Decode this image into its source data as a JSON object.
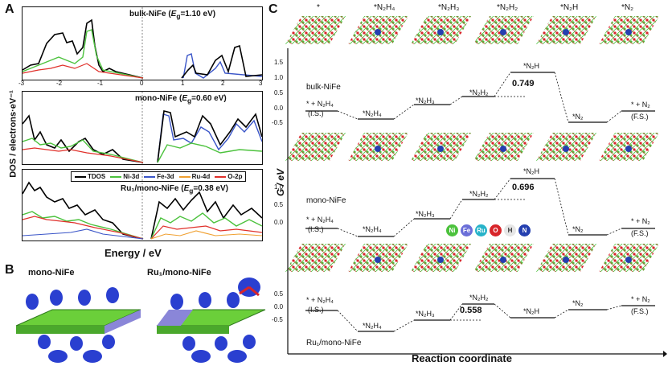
{
  "panels": {
    "a": "A",
    "b": "B",
    "c": "C"
  },
  "dos": {
    "ylabel": "DOS / electrons·eV⁻¹",
    "xlabel": "Energy / eV",
    "xticks": [
      "-3",
      "-2",
      "-1",
      "0",
      "1",
      "2",
      "3"
    ],
    "titles": [
      {
        "name": "bulk-NiFe",
        "gap": "1.10 eV"
      },
      {
        "name": "mono-NiFe",
        "gap": "0.60 eV"
      },
      {
        "name": "Ru₁/mono-NiFe",
        "gap": "0.38 eV"
      }
    ],
    "legend": [
      "TDOS",
      "Ni-3d",
      "Fe-3d",
      "Ru-4d",
      "O-2p"
    ],
    "colors": {
      "tdos": "#000000",
      "ni": "#4cc23d",
      "fe": "#3a55c8",
      "ru": "#f0a030",
      "o": "#e0302a"
    }
  },
  "b": {
    "left_label": "mono-NiFe",
    "right_label": "Ru₁/mono-NiFe"
  },
  "c": {
    "top_labels": [
      "*",
      "*N₂H₄",
      "*N₂H₃",
      "*N₂H₂",
      "*N₂H",
      "*N₂"
    ],
    "ylabel": "G / eV",
    "xlabel": "Reaction coordinate",
    "yticks_top": [
      "1.5",
      "1.0",
      "0.5",
      "0.0",
      "-0.5"
    ],
    "yticks_mid": [
      "1.0",
      "0.5",
      "0.0"
    ],
    "yticks_bot": [
      "0.5",
      "0.0",
      "-0.5"
    ],
    "systems": [
      "bulk-NiFe",
      "mono-NiFe",
      "Ru₁/mono-NiFe"
    ],
    "barriers": [
      "0.749",
      "0.696",
      "0.558"
    ],
    "steps": [
      "* + N₂H₄",
      "(I.S.)",
      "*N₂H₄",
      "*N₂H₃",
      "*N₂H₂",
      "*N₂H",
      "*N₂",
      "* + N₂",
      "(F.S.)"
    ],
    "atoms": [
      "Ni",
      "Fe",
      "Ru",
      "O",
      "H",
      "N"
    ],
    "atom_colors": [
      "#4cc23d",
      "#6b6fd8",
      "#27b3c9",
      "#d8252a",
      "#e6e6e6",
      "#2540b0"
    ]
  }
}
